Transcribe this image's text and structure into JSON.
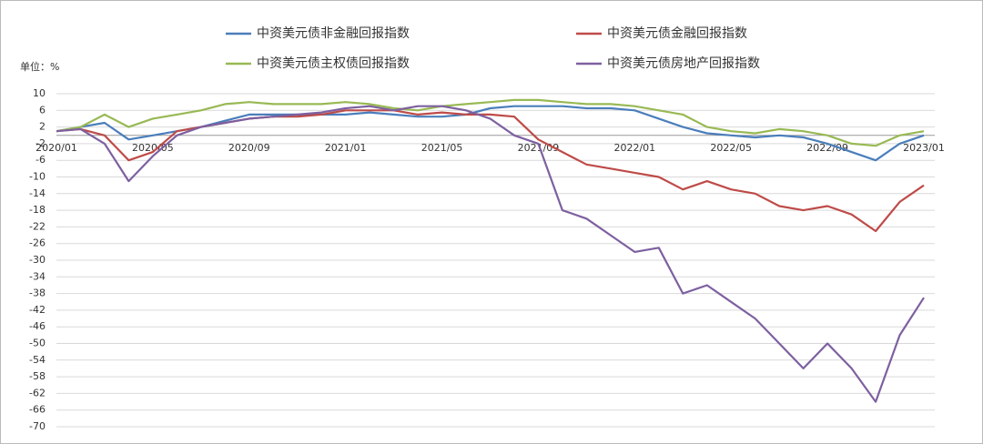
{
  "chart_data": {
    "type": "line",
    "y_label": "单位：%",
    "categories": [
      "2020/01",
      null,
      null,
      null,
      "2020/05",
      null,
      null,
      null,
      "2020/09",
      null,
      null,
      null,
      "2021/01",
      null,
      null,
      null,
      "2021/05",
      null,
      null,
      null,
      "2021/09",
      null,
      null,
      null,
      "2022/01",
      null,
      null,
      null,
      "2022/05",
      null,
      null,
      null,
      "2022/09",
      null,
      null,
      null,
      "2023/01"
    ],
    "series": [
      {
        "name": "中资美元债非金融回报指数",
        "color": "#4a7ebb",
        "values": [
          1,
          2,
          3,
          -1,
          0,
          1,
          2,
          3.5,
          5,
          5,
          5,
          5,
          5,
          5.5,
          5,
          4.5,
          4.5,
          5,
          6.5,
          7,
          7,
          7,
          6.5,
          6.5,
          6,
          4,
          2,
          0.5,
          0,
          -0.5,
          0,
          -0.5,
          -2,
          -4,
          -6,
          -2,
          0
        ]
      },
      {
        "name": "中资美元债金融回报指数",
        "color": "#be4b48",
        "values": [
          1,
          1.5,
          0,
          -6,
          -4,
          1,
          2,
          3,
          4,
          4.5,
          4.5,
          5,
          6,
          6,
          6,
          5,
          5.5,
          5,
          5,
          4.5,
          -1,
          -4,
          -7,
          -8,
          -9,
          -10,
          -13,
          -11,
          -13,
          -14,
          -17,
          -18,
          -17,
          -19,
          -23,
          -16,
          -12
        ]
      },
      {
        "name": "中资美元债主权债回报指数",
        "color": "#98b954",
        "values": [
          1,
          2,
          5,
          2,
          4,
          5,
          6,
          7.5,
          8,
          7.5,
          7.5,
          7.5,
          8,
          7.5,
          6.5,
          6,
          7,
          7.5,
          8,
          8.5,
          8.5,
          8,
          7.5,
          7.5,
          7,
          6,
          5,
          2,
          1,
          0.5,
          1.5,
          1,
          0,
          -2,
          -2.5,
          0,
          1
        ]
      },
      {
        "name": "中资美元债房地产回报指数",
        "color": "#7d60a0",
        "values": [
          1,
          1.5,
          -2,
          -11,
          -5,
          0,
          2,
          3,
          4,
          4.5,
          5,
          5.5,
          6.5,
          7,
          6,
          7,
          7,
          6,
          4,
          0,
          -2,
          -18,
          -20,
          -24,
          -28,
          -27,
          -38,
          -36,
          -40,
          -44,
          -50,
          -56,
          -50,
          -56,
          -64,
          -48,
          -39
        ]
      }
    ],
    "ylim": [
      -70,
      10
    ],
    "yticks": [
      10,
      6,
      2,
      -2,
      -6,
      -10,
      -14,
      -18,
      -22,
      -26,
      -30,
      -34,
      -38,
      -42,
      -46,
      -50,
      -54,
      -58,
      -62,
      -66,
      -70
    ],
    "grid": true
  }
}
